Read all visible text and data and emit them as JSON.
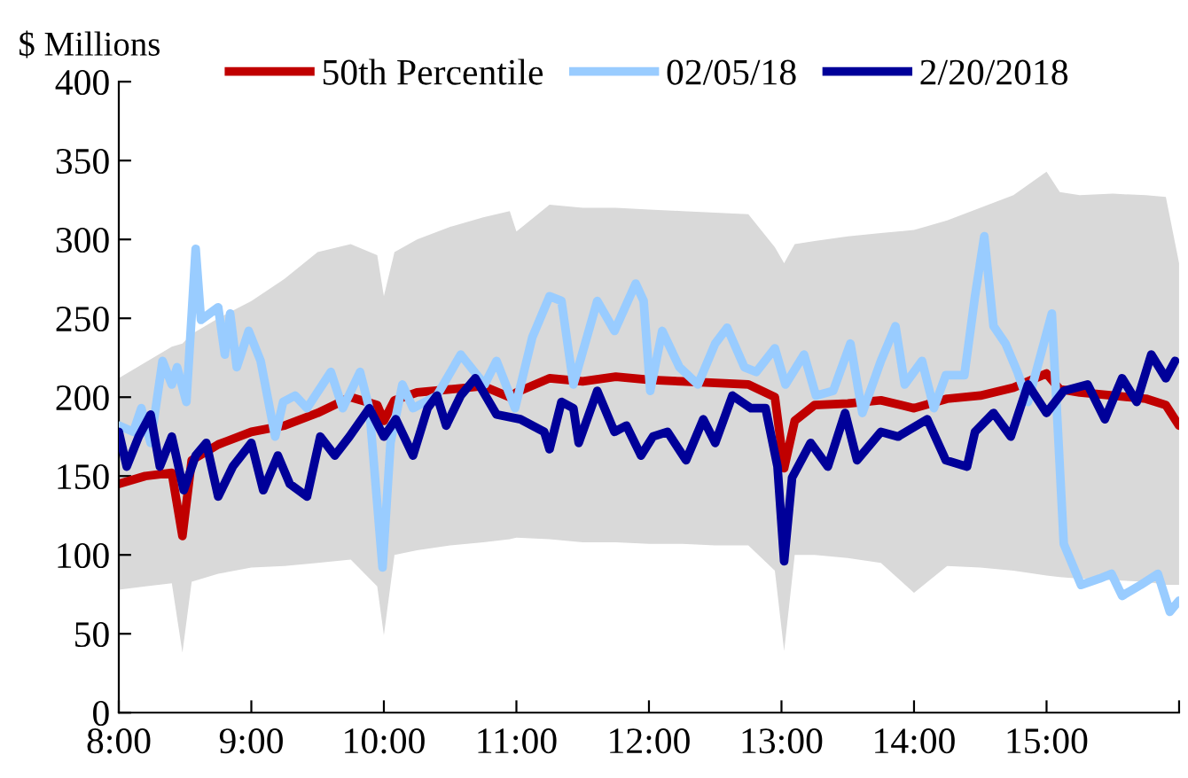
{
  "chart_data": {
    "type": "line",
    "ylabel": "$ Millions",
    "xlim": [
      8,
      16
    ],
    "xticks": [
      {
        "value": 8,
        "label": "8:00"
      },
      {
        "value": 9,
        "label": "9:00"
      },
      {
        "value": 10,
        "label": "10:00"
      },
      {
        "value": 11,
        "label": "11:00"
      },
      {
        "value": 12,
        "label": "12:00"
      },
      {
        "value": 13,
        "label": "13:00"
      },
      {
        "value": 14,
        "label": "14:00"
      },
      {
        "value": 15,
        "label": "15:00"
      },
      {
        "value": 16,
        "label": null
      }
    ],
    "ylim": [
      0,
      400
    ],
    "yticks": [
      0,
      50,
      100,
      150,
      200,
      250,
      300,
      350,
      400
    ],
    "grid": false,
    "legend": "top",
    "marker": "none",
    "line_style": "solid",
    "series": [
      {
        "name": "50th Percentile",
        "color": "#c00000",
        "x": [
          8.0,
          8.2,
          8.4,
          8.48,
          8.55,
          8.75,
          9.0,
          9.25,
          9.5,
          9.75,
          9.95,
          10.0,
          10.08,
          10.25,
          10.5,
          10.75,
          10.95,
          11.0,
          11.25,
          11.5,
          11.75,
          12.0,
          12.25,
          12.5,
          12.75,
          12.95,
          13.02,
          13.1,
          13.25,
          13.5,
          13.75,
          14.0,
          14.25,
          14.5,
          14.75,
          15.0,
          15.1,
          15.25,
          15.5,
          15.75,
          15.9,
          16.0
        ],
        "values": [
          145,
          150,
          152,
          112,
          160,
          170,
          178,
          182,
          190,
          200,
          195,
          185,
          198,
          203,
          205,
          207,
          200,
          203,
          212,
          210,
          213,
          211,
          210,
          209,
          208,
          200,
          155,
          185,
          195,
          196,
          198,
          193,
          199,
          201,
          206,
          215,
          205,
          203,
          201,
          199,
          195,
          182
        ],
        "upper": [
          212,
          222,
          232,
          234,
          240,
          250,
          261,
          275,
          292,
          297,
          290,
          264,
          292,
          300,
          308,
          314,
          318,
          305,
          322,
          320,
          320,
          319,
          318,
          317,
          316,
          295,
          285,
          297,
          299,
          302,
          304,
          306,
          312,
          320,
          328,
          343,
          330,
          328,
          329,
          328,
          327,
          285
        ],
        "lower": [
          78,
          80,
          82,
          38,
          83,
          88,
          92,
          93,
          95,
          97,
          80,
          49,
          100,
          103,
          106,
          108,
          110,
          111,
          110,
          108,
          108,
          107,
          107,
          106,
          106,
          90,
          39,
          100,
          100,
          98,
          95,
          76,
          93,
          92,
          90,
          87,
          86,
          85,
          84,
          83,
          81,
          81
        ]
      },
      {
        "name": "02/05/18",
        "color": "#99ccff",
        "x": [
          8.0,
          8.11,
          8.17,
          8.24,
          8.33,
          8.4,
          8.44,
          8.51,
          8.58,
          8.62,
          8.75,
          8.8,
          8.84,
          8.89,
          8.98,
          9.07,
          9.18,
          9.24,
          9.33,
          9.42,
          9.6,
          9.69,
          9.82,
          9.89,
          9.99,
          10.05,
          10.14,
          10.22,
          10.4,
          10.58,
          10.76,
          10.85,
          10.99,
          11.12,
          11.25,
          11.34,
          11.43,
          11.61,
          11.74,
          11.9,
          11.96,
          12.01,
          12.1,
          12.23,
          12.37,
          12.5,
          12.59,
          12.72,
          12.81,
          12.95,
          13.03,
          13.17,
          13.26,
          13.39,
          13.52,
          13.61,
          13.75,
          13.86,
          13.93,
          14.06,
          14.15,
          14.24,
          14.38,
          14.46,
          14.53,
          14.6,
          14.69,
          14.78,
          14.86,
          15.04,
          15.13,
          15.26,
          15.4,
          15.49,
          15.57,
          15.71,
          15.84,
          15.93,
          16.0
        ],
        "values": [
          182,
          178,
          193,
          171,
          223,
          208,
          219,
          197,
          294,
          249,
          257,
          227,
          253,
          219,
          242,
          223,
          175,
          197,
          201,
          193,
          216,
          193,
          216,
          193,
          92,
          171,
          208,
          193,
          201,
          227,
          208,
          223,
          193,
          238,
          264,
          261,
          208,
          261,
          242,
          272,
          261,
          204,
          242,
          219,
          208,
          234,
          244,
          219,
          216,
          231,
          208,
          227,
          201,
          204,
          234,
          190,
          223,
          245,
          208,
          223,
          193,
          214,
          214,
          264,
          302,
          245,
          234,
          216,
          197,
          253,
          107,
          81,
          85,
          88,
          74,
          81,
          88,
          64,
          71
        ]
      },
      {
        "name": "2/20/2018",
        "color": "#000099",
        "x": [
          8.0,
          8.06,
          8.15,
          8.24,
          8.31,
          8.4,
          8.49,
          8.58,
          8.66,
          8.75,
          8.86,
          9.0,
          9.09,
          9.2,
          9.29,
          9.42,
          9.52,
          9.63,
          9.74,
          9.89,
          10.0,
          10.09,
          10.22,
          10.33,
          10.4,
          10.47,
          10.58,
          10.69,
          10.85,
          11.03,
          11.21,
          11.25,
          11.34,
          11.43,
          11.47,
          11.61,
          11.74,
          11.83,
          11.94,
          12.03,
          12.14,
          12.28,
          12.41,
          12.5,
          12.63,
          12.77,
          12.88,
          12.97,
          13.02,
          13.08,
          13.22,
          13.35,
          13.48,
          13.57,
          13.75,
          13.88,
          14.1,
          14.24,
          14.4,
          14.46,
          14.6,
          14.73,
          14.86,
          15.0,
          15.13,
          15.31,
          15.44,
          15.57,
          15.68,
          15.79,
          15.9,
          15.97
        ],
        "values": [
          178,
          156,
          175,
          189,
          156,
          175,
          141,
          163,
          171,
          137,
          156,
          171,
          141,
          163,
          145,
          137,
          175,
          163,
          175,
          193,
          175,
          186,
          163,
          193,
          201,
          182,
          201,
          212,
          189,
          186,
          178,
          167,
          197,
          193,
          171,
          204,
          178,
          182,
          163,
          175,
          178,
          160,
          186,
          171,
          201,
          193,
          193,
          156,
          96,
          149,
          171,
          156,
          190,
          160,
          178,
          175,
          186,
          160,
          156,
          178,
          190,
          175,
          208,
          190,
          204,
          208,
          186,
          212,
          197,
          227,
          212,
          223
        ]
      }
    ]
  }
}
